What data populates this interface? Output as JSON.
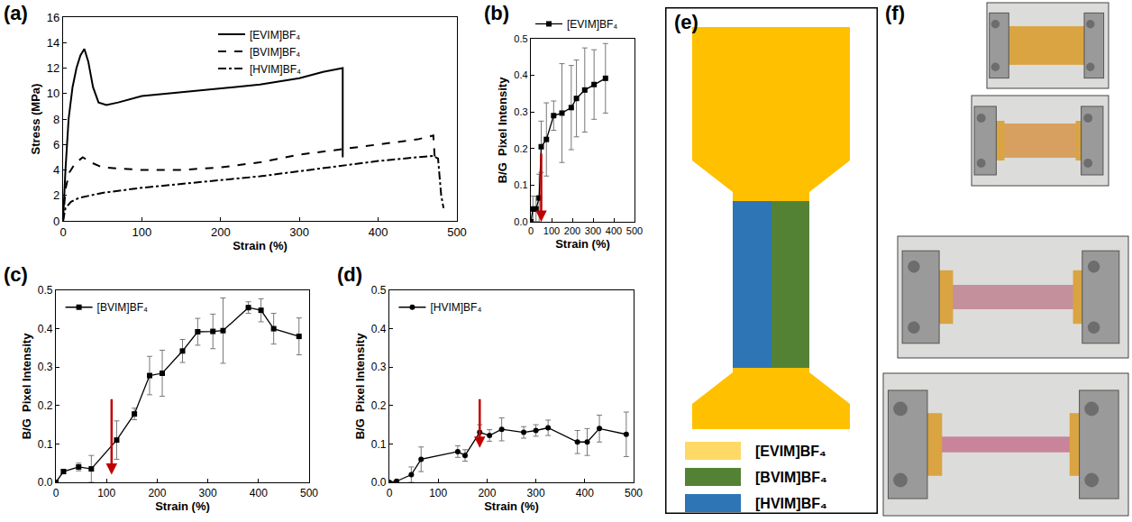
{
  "chart_data": [
    {
      "type": "line",
      "panel_label": "(a)",
      "x_label": "Strain (%)",
      "y_label": "Stress (MPa)",
      "xlim": [
        0,
        500
      ],
      "xticks": [
        0,
        100,
        200,
        300,
        400,
        500
      ],
      "ylim": [
        0,
        16
      ],
      "yticks": [
        0,
        2,
        4,
        6,
        8,
        10,
        12,
        14,
        16
      ],
      "grid": false,
      "legend": "upper center",
      "series": [
        {
          "name": "[EVIM]BF₄",
          "color": "#000000",
          "line_style": "solid",
          "x": [
            0,
            3,
            7,
            12,
            17,
            22,
            27,
            32,
            38,
            45,
            55,
            70,
            100,
            150,
            200,
            250,
            300,
            330,
            355,
            355
          ],
          "values": [
            0,
            4,
            8,
            10.5,
            12,
            13,
            13.5,
            12.5,
            10.5,
            9.3,
            9.1,
            9.3,
            9.8,
            10.1,
            10.4,
            10.7,
            11.2,
            11.7,
            12,
            5
          ]
        },
        {
          "name": "[BVIM]BF₄",
          "color": "#000000",
          "line_style": "dash",
          "x": [
            0,
            3,
            8,
            15,
            25,
            35,
            50,
            100,
            150,
            200,
            250,
            300,
            350,
            400,
            450,
            470,
            472
          ],
          "values": [
            0,
            2.5,
            3.8,
            4.5,
            5,
            4.6,
            4.2,
            4,
            4,
            4.2,
            4.6,
            5.2,
            5.6,
            6,
            6.4,
            6.7,
            4.8
          ]
        },
        {
          "name": "[HVIM]BF₄",
          "color": "#000000",
          "line_style": "dashdot",
          "x": [
            0,
            3,
            10,
            20,
            50,
            100,
            150,
            200,
            250,
            300,
            350,
            400,
            450,
            470,
            476,
            480,
            483
          ],
          "values": [
            0,
            1,
            1.5,
            1.8,
            2.2,
            2.6,
            2.9,
            3.2,
            3.5,
            3.9,
            4.3,
            4.7,
            5,
            5.1,
            4.9,
            2,
            1
          ]
        }
      ]
    },
    {
      "type": "line",
      "panel_label": "(b)",
      "x_label": "Strain (%)",
      "y_label": "B/G  Pixel Intensity",
      "xlim": [
        0,
        500
      ],
      "xticks": [
        0,
        100,
        200,
        300,
        400,
        500
      ],
      "ylim": [
        0,
        0.5
      ],
      "yticks": [
        {
          "value": 0,
          "label": "0.0"
        },
        0.1,
        0.2,
        0.3,
        0.4,
        0.5
      ],
      "grid": false,
      "legend": "above",
      "arrow": {
        "x": 50,
        "from": 0.19,
        "to": 0.0,
        "color": "#c00000"
      },
      "series": [
        {
          "name": "[EVIM]BF₄",
          "color": "#000000",
          "line_style": "solid",
          "marker": "square",
          "x": [
            0,
            10,
            25,
            40,
            50,
            75,
            110,
            150,
            195,
            220,
            260,
            305,
            360
          ],
          "values": [
            0,
            0.035,
            0.035,
            0.065,
            0.205,
            0.225,
            0.29,
            0.297,
            0.312,
            0.337,
            0.36,
            0.375,
            0.392
          ],
          "error": [
            0,
            0.035,
            0.035,
            0.065,
            0.07,
            0.1,
            0.04,
            0.135,
            0.115,
            0.105,
            0.115,
            0.095,
            0.095
          ]
        }
      ]
    },
    {
      "type": "line",
      "panel_label": "(c)",
      "x_label": "Strain (%)",
      "y_label": "B/G  Pixel Intensity",
      "xlim": [
        0,
        500
      ],
      "xticks": [
        0,
        100,
        200,
        300,
        400,
        500
      ],
      "ylim": [
        0,
        0.5
      ],
      "yticks": [
        {
          "value": 0,
          "label": "0.0"
        },
        0.1,
        0.2,
        0.3,
        0.4,
        0.5
      ],
      "grid": false,
      "legend": "upper left",
      "arrow": {
        "x": 110,
        "from": 0.22,
        "to": 0.02,
        "color": "#c00000"
      },
      "series": [
        {
          "name": "[BVIM]BF₄",
          "color": "#000000",
          "line_style": "solid",
          "marker": "square",
          "x": [
            0,
            15,
            45,
            70,
            120,
            155,
            185,
            210,
            250,
            280,
            310,
            330,
            380,
            405,
            430,
            480
          ],
          "values": [
            0,
            0.028,
            0.04,
            0.035,
            0.11,
            0.178,
            0.278,
            0.284,
            0.342,
            0.392,
            0.393,
            0.395,
            0.455,
            0.448,
            0.4,
            0.38
          ],
          "error": [
            0,
            0.005,
            0.01,
            0.035,
            0.05,
            0.015,
            0.05,
            0.06,
            0.03,
            0.035,
            0.045,
            0.085,
            0.015,
            0.03,
            0.04,
            0.048
          ]
        }
      ]
    },
    {
      "type": "line",
      "panel_label": "(d)",
      "x_label": "Strain (%)",
      "y_label": "B/G  Pixel Intensity",
      "xlim": [
        0,
        500
      ],
      "xticks": [
        0,
        100,
        200,
        300,
        400,
        500
      ],
      "ylim": [
        0,
        0.5
      ],
      "yticks": [
        {
          "value": 0,
          "label": "0.0"
        },
        0.1,
        0.2,
        0.3,
        0.4,
        0.5
      ],
      "grid": false,
      "legend": "upper left",
      "arrow": {
        "x": 185,
        "from": 0.22,
        "to": 0.09,
        "color": "#c00000"
      },
      "series": [
        {
          "name": "[HVIM]BF₄",
          "color": "#000000",
          "line_style": "solid",
          "marker": "circle",
          "x": [
            0,
            15,
            45,
            65,
            140,
            155,
            185,
            205,
            230,
            275,
            300,
            325,
            385,
            405,
            430,
            485
          ],
          "values": [
            0,
            0.003,
            0.02,
            0.06,
            0.08,
            0.07,
            0.13,
            0.122,
            0.138,
            0.13,
            0.135,
            0.142,
            0.105,
            0.105,
            0.14,
            0.125
          ],
          "error": [
            0,
            0.003,
            0.02,
            0.032,
            0.015,
            0.015,
            0.02,
            0.015,
            0.03,
            0.015,
            0.015,
            0.02,
            0.03,
            0.035,
            0.035,
            0.058
          ]
        }
      ]
    }
  ],
  "diagram": {
    "panel_label": "(e)",
    "specimen": {
      "body_color": "#ffc000",
      "neck_left_color": "#2e75b6",
      "neck_right_color": "#548235"
    },
    "legend": [
      {
        "label": "[EVIM]BF₄",
        "color": "#ffd966"
      },
      {
        "label": "[BVIM]BF₄",
        "color": "#548235"
      },
      {
        "label": "[HVIM]BF₄",
        "color": "#2e75b6"
      }
    ]
  },
  "photos": {
    "panel_label": "(f)"
  }
}
